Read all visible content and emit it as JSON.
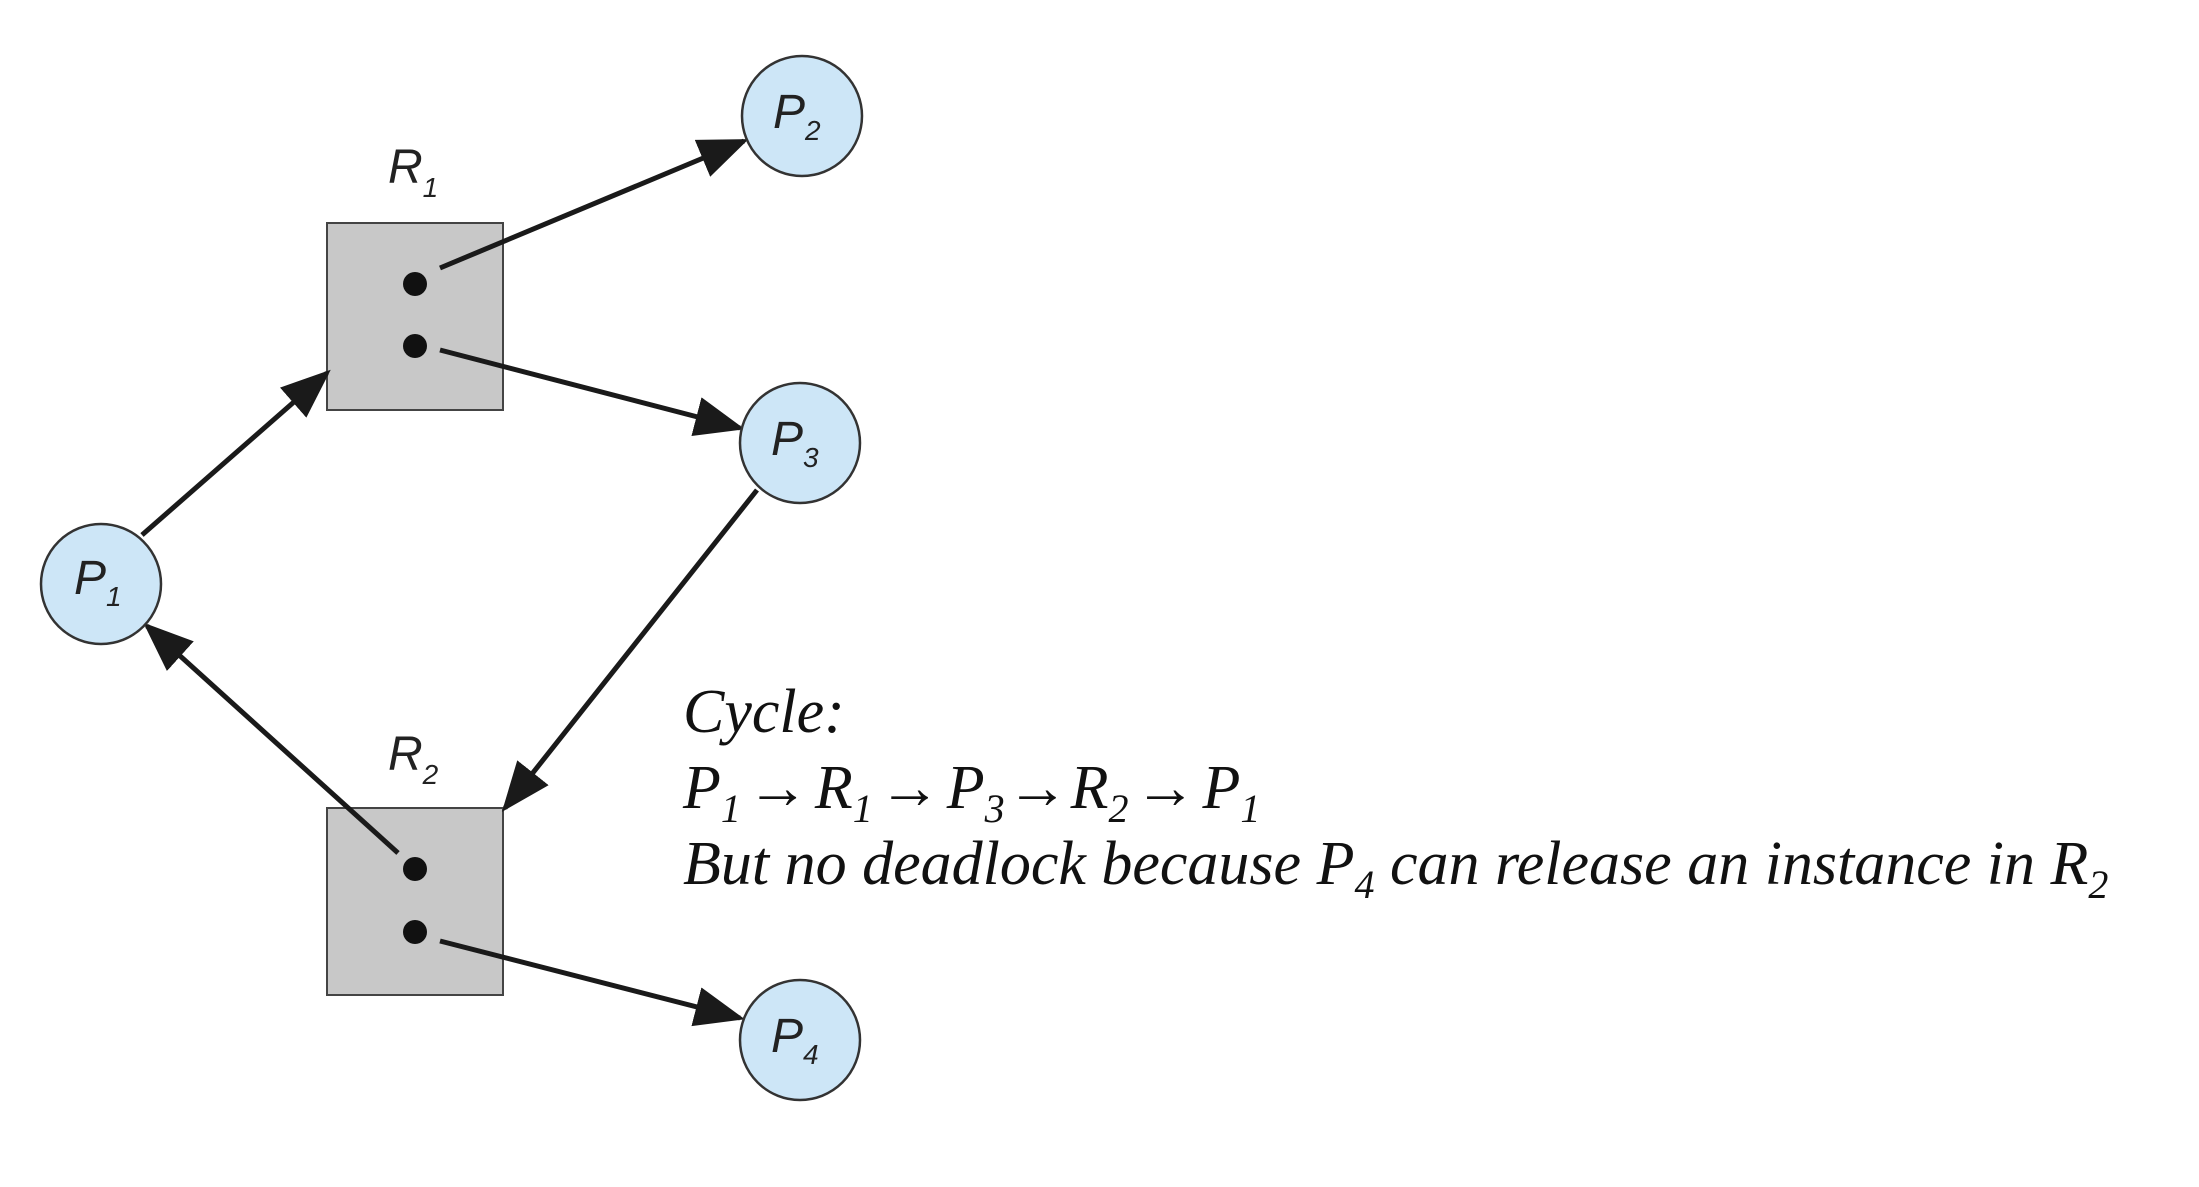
{
  "processes": [
    {
      "id": "p1",
      "base": "P",
      "sub": "1"
    },
    {
      "id": "p2",
      "base": "P",
      "sub": "2"
    },
    {
      "id": "p3",
      "base": "P",
      "sub": "3"
    },
    {
      "id": "p4",
      "base": "P",
      "sub": "4"
    }
  ],
  "resources": [
    {
      "id": "r1",
      "base": "R",
      "sub": "1",
      "instances": 2
    },
    {
      "id": "r2",
      "base": "R",
      "sub": "2",
      "instances": 2
    }
  ],
  "edges": [
    {
      "from": "P1",
      "to": "R1",
      "kind": "request"
    },
    {
      "from": "R1",
      "to": "P2",
      "kind": "assignment"
    },
    {
      "from": "R1",
      "to": "P3",
      "kind": "assignment"
    },
    {
      "from": "P3",
      "to": "R2",
      "kind": "request"
    },
    {
      "from": "R2",
      "to": "P1",
      "kind": "assignment"
    },
    {
      "from": "R2",
      "to": "P4",
      "kind": "assignment"
    }
  ],
  "annotation": {
    "heading": "Cycle:",
    "cycle": [
      {
        "base": "P",
        "sub": "1"
      },
      {
        "base": "R",
        "sub": "1"
      },
      {
        "base": "P",
        "sub": "3"
      },
      {
        "base": "R",
        "sub": "2"
      },
      {
        "base": "P",
        "sub": "1"
      }
    ],
    "arrow_symbol": "→",
    "note_text": "But no deadlock because ",
    "note_process": {
      "base": "P",
      "sub": "4"
    },
    "note_middle": " can release an instance in ",
    "note_resource": {
      "base": "R",
      "sub": "2"
    }
  },
  "colors": {
    "process_fill": "#cde6f7",
    "process_stroke": "#333333",
    "resource_fill": "#c8c8c8",
    "resource_stroke": "#444444",
    "edge": "#1a1a1a"
  }
}
